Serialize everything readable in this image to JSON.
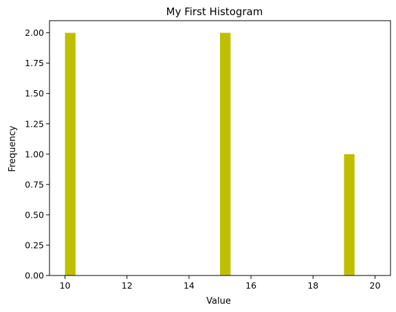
{
  "chart_data": {
    "type": "bar",
    "title": "My First Histogram",
    "xlabel": "Value",
    "ylabel": "Frequency",
    "bin_width": 0.34,
    "bins": [
      {
        "start": 10.0,
        "count": 2
      },
      {
        "start": 15.0,
        "count": 2
      },
      {
        "start": 19.0,
        "count": 1
      }
    ],
    "xlim": [
      9.5,
      20.5
    ],
    "ylim": [
      0,
      2.1
    ],
    "xticks": [
      10,
      12,
      14,
      16,
      18,
      20
    ],
    "yticks": [
      0.0,
      0.25,
      0.5,
      0.75,
      1.0,
      1.25,
      1.5,
      1.75,
      2.0
    ],
    "xtick_labels": [
      "10",
      "12",
      "14",
      "16",
      "18",
      "20"
    ],
    "ytick_labels": [
      "0.00",
      "0.25",
      "0.50",
      "0.75",
      "1.00",
      "1.25",
      "1.50",
      "1.75",
      "2.00"
    ],
    "grid": false,
    "bar_color": "#bfbf00"
  }
}
